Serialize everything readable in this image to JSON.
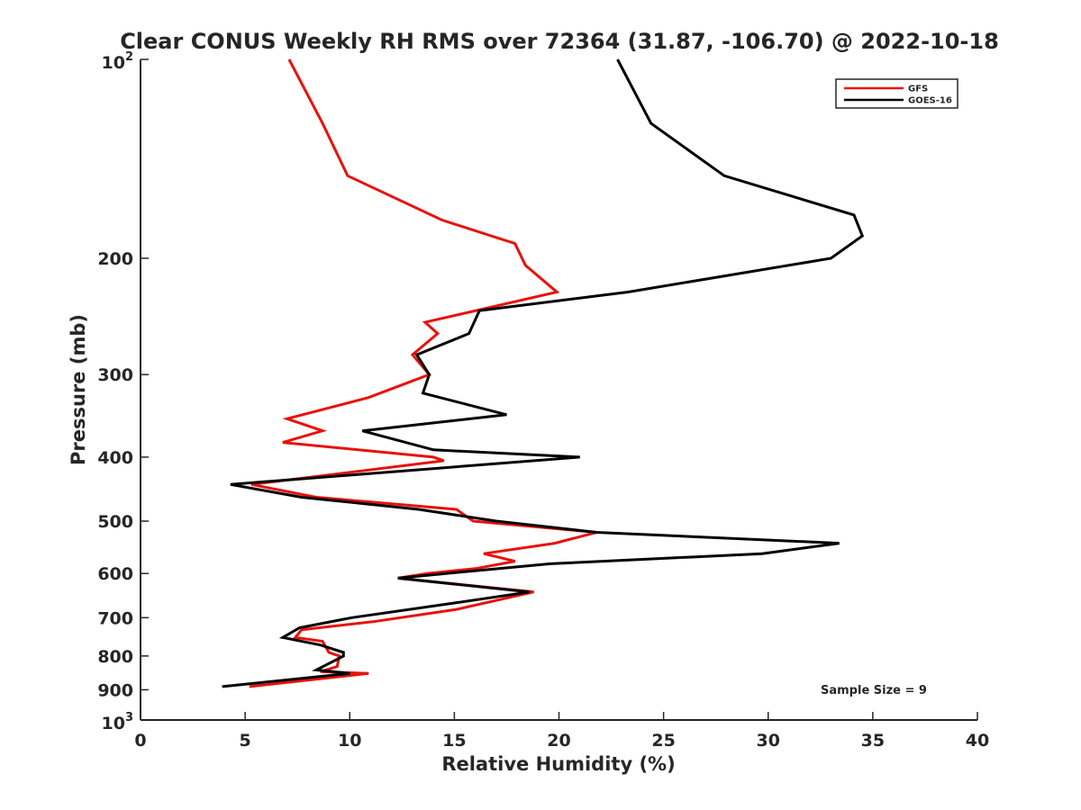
{
  "chart_data": {
    "type": "line",
    "title": "Clear CONUS Weekly RH RMS over 72364 (31.87, -106.70) @ 2022-10-18",
    "xlabel": "Relative Humidity (%)",
    "ylabel": "Pressure (mb)",
    "xlim": [
      0,
      40
    ],
    "ylim": [
      100,
      1000
    ],
    "yscale": "log",
    "y_reversed": true,
    "grid": false,
    "legend_position": "top-right",
    "x_ticks": [
      0,
      5,
      10,
      15,
      20,
      25,
      30,
      35,
      40
    ],
    "x_tick_labels": [
      "0",
      "5",
      "10",
      "15",
      "20",
      "25",
      "30",
      "35",
      "40"
    ],
    "y_ticks": [
      200,
      300,
      400,
      500,
      600,
      700,
      800,
      900
    ],
    "y_tick_labels": [
      "200",
      "300",
      "400",
      "500",
      "600",
      "700",
      "800",
      "900"
    ],
    "y_end_labels": {
      "top": {
        "base": "10",
        "exp": "2"
      },
      "bottom": {
        "base": "10",
        "exp": "3"
      }
    },
    "annotation": "Sample Size = 9",
    "series": [
      {
        "name": "GFS",
        "color": "#e8120c",
        "points": [
          [
            7.1,
            100
          ],
          [
            8.7,
            125
          ],
          [
            9.9,
            150
          ],
          [
            14.4,
            175
          ],
          [
            17.9,
            190
          ],
          [
            18.4,
            205
          ],
          [
            19.9,
            225
          ],
          [
            13.6,
            250
          ],
          [
            14.2,
            260
          ],
          [
            13.0,
            280
          ],
          [
            13.8,
            300
          ],
          [
            10.9,
            325
          ],
          [
            7.0,
            350
          ],
          [
            8.7,
            365
          ],
          [
            6.8,
            380
          ],
          [
            14.0,
            400
          ],
          [
            14.5,
            405
          ],
          [
            5.3,
            440
          ],
          [
            8.4,
            460
          ],
          [
            15.1,
            480
          ],
          [
            15.9,
            500
          ],
          [
            21.8,
            520
          ],
          [
            19.8,
            540
          ],
          [
            16.4,
            560
          ],
          [
            17.9,
            575
          ],
          [
            16.0,
            590
          ],
          [
            13.7,
            600
          ],
          [
            12.3,
            610
          ],
          [
            18.8,
            640
          ],
          [
            15.1,
            680
          ],
          [
            11.1,
            710
          ],
          [
            7.7,
            730
          ],
          [
            7.4,
            750
          ],
          [
            8.7,
            760
          ],
          [
            9.0,
            790
          ],
          [
            9.5,
            800
          ],
          [
            9.4,
            830
          ],
          [
            8.6,
            845
          ],
          [
            10.9,
            850
          ],
          [
            5.2,
            890
          ]
        ]
      },
      {
        "name": "GOES-16",
        "color": "#000000",
        "points": [
          [
            22.8,
            100
          ],
          [
            24.4,
            125
          ],
          [
            27.9,
            150
          ],
          [
            34.1,
            172
          ],
          [
            34.5,
            185
          ],
          [
            33.0,
            200
          ],
          [
            23.3,
            225
          ],
          [
            16.2,
            240
          ],
          [
            15.7,
            260
          ],
          [
            13.2,
            280
          ],
          [
            13.8,
            300
          ],
          [
            13.5,
            320
          ],
          [
            17.5,
            345
          ],
          [
            10.6,
            365
          ],
          [
            14.0,
            390
          ],
          [
            21.0,
            400
          ],
          [
            4.3,
            440
          ],
          [
            7.7,
            460
          ],
          [
            13.3,
            480
          ],
          [
            17.0,
            500
          ],
          [
            21.8,
            520
          ],
          [
            33.4,
            540
          ],
          [
            29.7,
            560
          ],
          [
            19.6,
            580
          ],
          [
            14.6,
            600
          ],
          [
            12.3,
            610
          ],
          [
            18.6,
            640
          ],
          [
            15.0,
            665
          ],
          [
            10.1,
            700
          ],
          [
            7.6,
            725
          ],
          [
            6.8,
            750
          ],
          [
            8.6,
            770
          ],
          [
            9.7,
            790
          ],
          [
            9.7,
            800
          ],
          [
            8.4,
            840
          ],
          [
            10.0,
            850
          ],
          [
            3.9,
            890
          ]
        ]
      }
    ]
  }
}
